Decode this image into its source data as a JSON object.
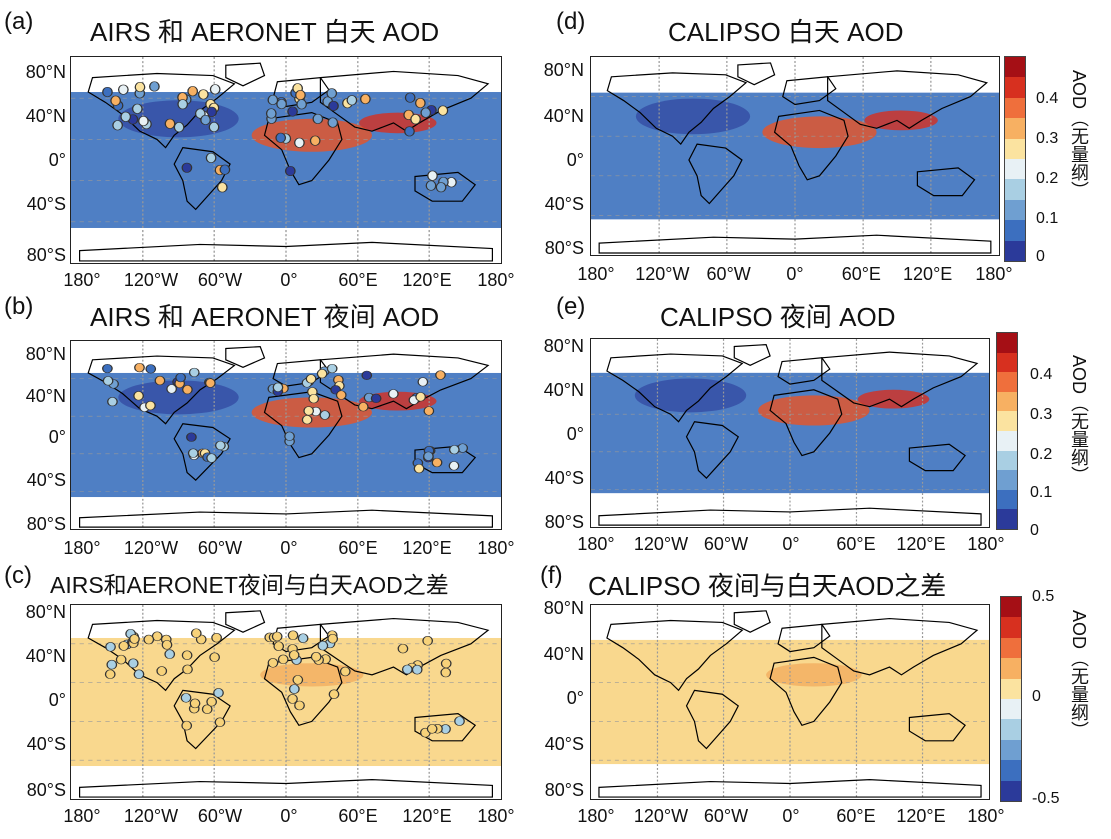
{
  "panels": [
    {
      "letter": "(a)",
      "title": "AIRS 和 AERONET 白天 AOD",
      "kind": "map"
    },
    {
      "letter": "(b)",
      "title": "AIRS 和 AERONET 夜间 AOD",
      "kind": "map"
    },
    {
      "letter": "(c)",
      "title": "AIRS和AERONET夜间与白天AOD之差",
      "kind": "diff"
    },
    {
      "letter": "(d)",
      "title": "CALIPSO 白天 AOD",
      "kind": "map"
    },
    {
      "letter": "(e)",
      "title": "CALIPSO 夜间 AOD",
      "kind": "map"
    },
    {
      "letter": "(f)",
      "title": "CALIPSO 夜间与白天AOD之差",
      "kind": "diff"
    }
  ],
  "lat_ticks": [
    "80°N",
    "40°N",
    "0°",
    "40°S",
    "80°S"
  ],
  "lon_ticks": [
    "180°",
    "120°W",
    "60°W",
    "0°",
    "60°E",
    "120°E",
    "180°"
  ],
  "colorbars": [
    {
      "label": "AOD（无量纲）",
      "ticks": [
        "0.4",
        "0.3",
        "0.2",
        "0.1",
        "0"
      ]
    },
    {
      "label": "AOD（无量纲）",
      "ticks": [
        "0.4",
        "0.3",
        "0.2",
        "0.1",
        "0"
      ]
    },
    {
      "label": "AOD（无量纲）",
      "ticks": [
        "0.5",
        "0",
        "-0.5"
      ]
    }
  ],
  "colors": {
    "aod_scale": [
      "#2b3a9a",
      "#3c6fbf",
      "#6f9fd1",
      "#a9cfe3",
      "#e8f1f5",
      "#fbe3a0",
      "#f7b062",
      "#ef6f3c",
      "#d7301f",
      "#a50f15"
    ],
    "ocean_blue": "#4f7fc4",
    "land_dust": "#e0562e",
    "diff_bg": "#f9d88e"
  }
}
